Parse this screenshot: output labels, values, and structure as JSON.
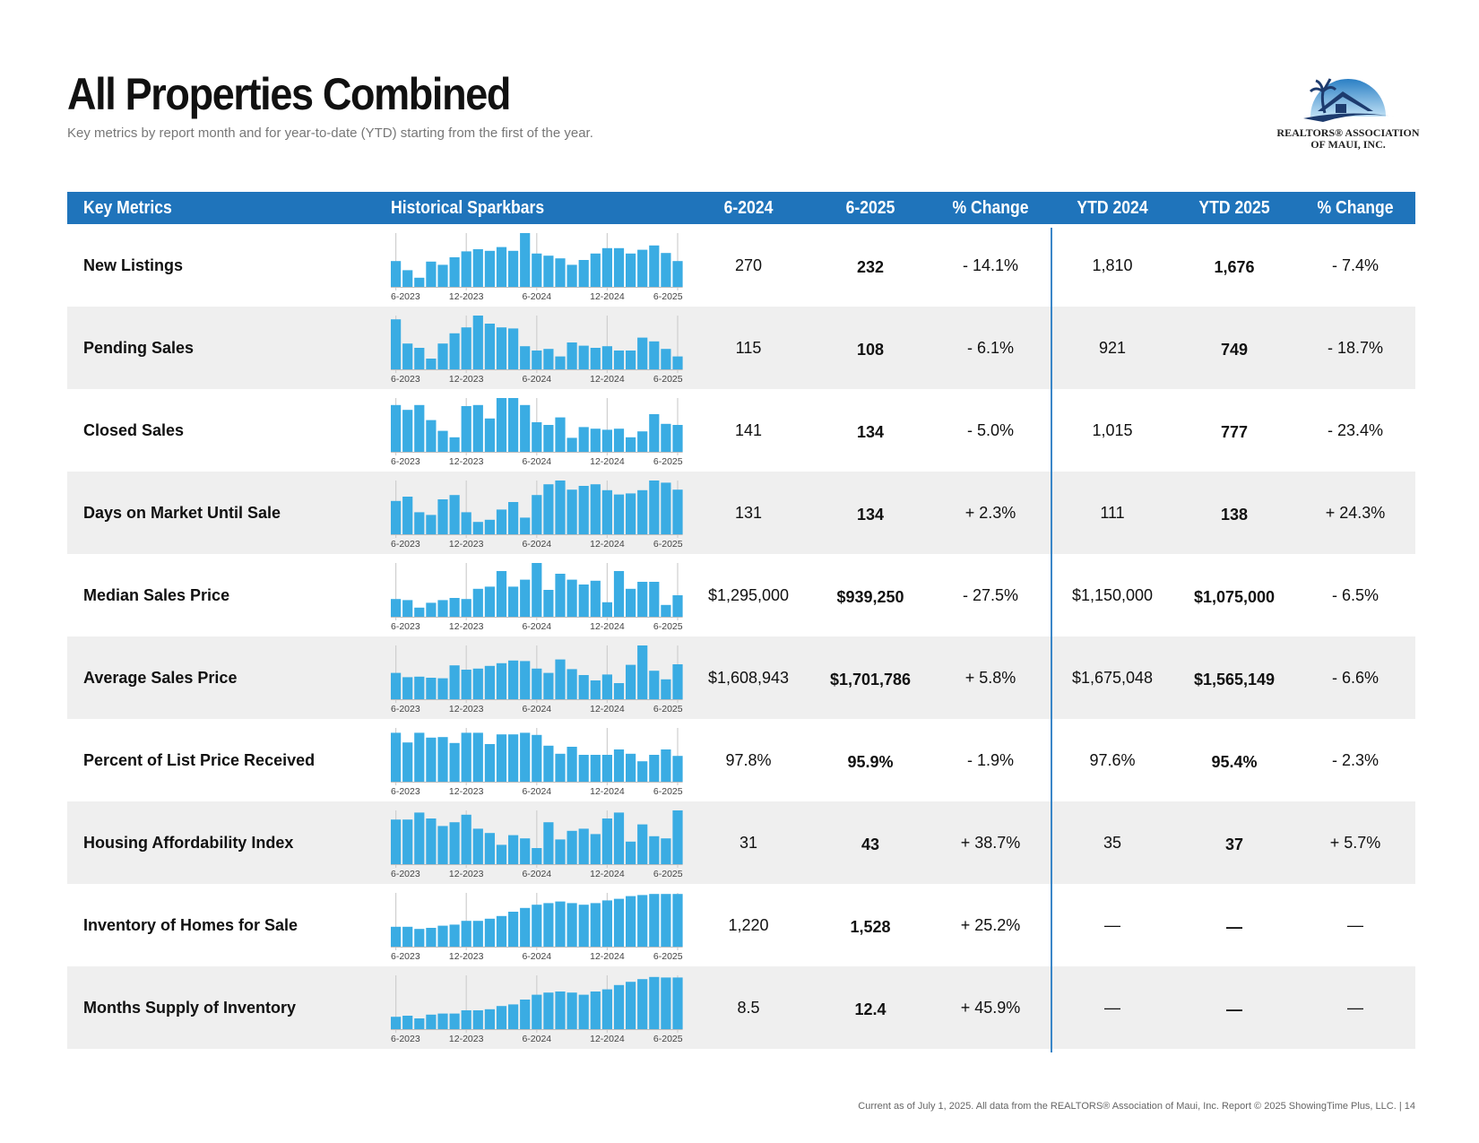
{
  "page": {
    "title": "All Properties Combined",
    "subtitle": "Key metrics by report month and for year-to-date (YTD) starting from the first of the year.",
    "footer": "Current as of July 1, 2025. All data from the REALTORS® Association of Maui, Inc. Report © 2025 ShowingTime Plus, LLC.  |  14"
  },
  "logo": {
    "line1": "REALTORS® ASSOCIATION",
    "line2": "OF MAUI, INC."
  },
  "table": {
    "headers": [
      "Key Metrics",
      "Historical Sparkbars",
      "6-2024",
      "6-2025",
      "% Change",
      "YTD 2024",
      "YTD 2025",
      "% Change"
    ],
    "spark_tick_labels": [
      "6-2023",
      "12-2023",
      "6-2024",
      "12-2024",
      "6-2025"
    ],
    "colors": {
      "header": "#1f74bb",
      "bar": "#3aace3",
      "divider": "#3a86c8",
      "row_alt": "#efefef"
    },
    "rows": [
      {
        "metric": "New Listings",
        "m2024": "270",
        "m2025": "232",
        "chg": "- 14.1%",
        "ytd2024": "1,810",
        "ytd2025": "1,676",
        "ytdchg": "- 7.4%"
      },
      {
        "metric": "Pending Sales",
        "m2024": "115",
        "m2025": "108",
        "chg": "- 6.1%",
        "ytd2024": "921",
        "ytd2025": "749",
        "ytdchg": "- 18.7%"
      },
      {
        "metric": "Closed Sales",
        "m2024": "141",
        "m2025": "134",
        "chg": "- 5.0%",
        "ytd2024": "1,015",
        "ytd2025": "777",
        "ytdchg": "- 23.4%"
      },
      {
        "metric": "Days on Market Until Sale",
        "m2024": "131",
        "m2025": "134",
        "chg": "+ 2.3%",
        "ytd2024": "111",
        "ytd2025": "138",
        "ytdchg": "+ 24.3%"
      },
      {
        "metric": "Median Sales Price",
        "m2024": "$1,295,000",
        "m2025": "$939,250",
        "chg": "- 27.5%",
        "ytd2024": "$1,150,000",
        "ytd2025": "$1,075,000",
        "ytdchg": "- 6.5%"
      },
      {
        "metric": "Average Sales Price",
        "m2024": "$1,608,943",
        "m2025": "$1,701,786",
        "chg": "+ 5.8%",
        "ytd2024": "$1,675,048",
        "ytd2025": "$1,565,149",
        "ytdchg": "- 6.6%"
      },
      {
        "metric": "Percent of List Price Received",
        "m2024": "97.8%",
        "m2025": "95.9%",
        "chg": "- 1.9%",
        "ytd2024": "97.6%",
        "ytd2025": "95.4%",
        "ytdchg": "- 2.3%"
      },
      {
        "metric": "Housing Affordability Index",
        "m2024": "31",
        "m2025": "43",
        "chg": "+ 38.7%",
        "ytd2024": "35",
        "ytd2025": "37",
        "ytdchg": "+ 5.7%"
      },
      {
        "metric": "Inventory of Homes for Sale",
        "m2024": "1,220",
        "m2025": "1,528",
        "chg": "+ 25.2%",
        "ytd2024": "—",
        "ytd2025": "—",
        "ytdchg": "—"
      },
      {
        "metric": "Months Supply of Inventory",
        "m2024": "8.5",
        "m2025": "12.4",
        "chg": "+ 45.9%",
        "ytd2024": "—",
        "ytd2025": "—",
        "ytdchg": "—"
      }
    ]
  },
  "chart_data": [
    {
      "type": "bar",
      "title": "New Listings",
      "categories": [
        "6-2023",
        "7-2023",
        "8-2023",
        "9-2023",
        "10-2023",
        "11-2023",
        "12-2023",
        "1-2024",
        "2-2024",
        "3-2024",
        "4-2024",
        "5-2024",
        "6-2024",
        "7-2024",
        "8-2024",
        "9-2024",
        "10-2024",
        "11-2024",
        "12-2024",
        "1-2025",
        "2-2025",
        "3-2025",
        "4-2025",
        "5-2025",
        "6-2025"
      ],
      "values": [
        0.48,
        0.31,
        0.17,
        0.47,
        0.41,
        0.55,
        0.66,
        0.7,
        0.67,
        0.74,
        0.67,
        1.0,
        0.62,
        0.58,
        0.53,
        0.41,
        0.5,
        0.62,
        0.72,
        0.72,
        0.62,
        0.69,
        0.77,
        0.63,
        0.48
      ]
    },
    {
      "type": "bar",
      "title": "Pending Sales",
      "categories": [
        "6-2023",
        "7-2023",
        "8-2023",
        "9-2023",
        "10-2023",
        "11-2023",
        "12-2023",
        "1-2024",
        "2-2024",
        "3-2024",
        "4-2024",
        "5-2024",
        "6-2024",
        "7-2024",
        "8-2024",
        "9-2024",
        "10-2024",
        "11-2024",
        "12-2024",
        "1-2025",
        "2-2025",
        "3-2025",
        "4-2025",
        "5-2025",
        "6-2025"
      ],
      "values": [
        0.93,
        0.48,
        0.4,
        0.2,
        0.48,
        0.67,
        0.78,
        1.0,
        0.85,
        0.78,
        0.76,
        0.43,
        0.35,
        0.38,
        0.24,
        0.5,
        0.44,
        0.4,
        0.43,
        0.35,
        0.35,
        0.59,
        0.52,
        0.38,
        0.24
      ]
    },
    {
      "type": "bar",
      "title": "Closed Sales",
      "categories": [
        "6-2023",
        "7-2023",
        "8-2023",
        "9-2023",
        "10-2023",
        "11-2023",
        "12-2023",
        "1-2024",
        "2-2024",
        "3-2024",
        "4-2024",
        "5-2024",
        "6-2024",
        "7-2024",
        "8-2024",
        "9-2024",
        "10-2024",
        "11-2024",
        "12-2024",
        "1-2025",
        "2-2025",
        "3-2025",
        "4-2025",
        "5-2025",
        "6-2025"
      ],
      "values": [
        0.87,
        0.78,
        0.87,
        0.59,
        0.39,
        0.27,
        0.85,
        0.87,
        0.62,
        1.0,
        1.0,
        0.87,
        0.55,
        0.5,
        0.64,
        0.26,
        0.46,
        0.43,
        0.41,
        0.43,
        0.27,
        0.38,
        0.7,
        0.52,
        0.5
      ]
    },
    {
      "type": "bar",
      "title": "Days on Market Until Sale",
      "categories": [
        "6-2023",
        "7-2023",
        "8-2023",
        "9-2023",
        "10-2023",
        "11-2023",
        "12-2023",
        "1-2024",
        "2-2024",
        "3-2024",
        "4-2024",
        "5-2024",
        "6-2024",
        "7-2024",
        "8-2024",
        "9-2024",
        "10-2024",
        "11-2024",
        "12-2024",
        "1-2025",
        "2-2025",
        "3-2025",
        "4-2025",
        "5-2025",
        "6-2025"
      ],
      "values": [
        0.62,
        0.7,
        0.41,
        0.36,
        0.65,
        0.73,
        0.41,
        0.23,
        0.27,
        0.46,
        0.6,
        0.31,
        0.73,
        0.93,
        1.0,
        0.83,
        0.9,
        0.93,
        0.82,
        0.74,
        0.76,
        0.82,
        1.0,
        0.96,
        0.83
      ]
    },
    {
      "type": "bar",
      "title": "Median Sales Price",
      "categories": [
        "6-2023",
        "7-2023",
        "8-2023",
        "9-2023",
        "10-2023",
        "11-2023",
        "12-2023",
        "1-2024",
        "2-2024",
        "3-2024",
        "4-2024",
        "5-2024",
        "6-2024",
        "7-2024",
        "8-2024",
        "9-2024",
        "10-2024",
        "11-2024",
        "12-2024",
        "1-2025",
        "2-2025",
        "3-2025",
        "4-2025",
        "5-2025",
        "6-2025"
      ],
      "values": [
        0.33,
        0.31,
        0.17,
        0.26,
        0.31,
        0.35,
        0.33,
        0.52,
        0.56,
        0.85,
        0.56,
        0.69,
        1.0,
        0.5,
        0.8,
        0.69,
        0.6,
        0.67,
        0.27,
        0.85,
        0.52,
        0.65,
        0.65,
        0.22,
        0.4
      ]
    },
    {
      "type": "bar",
      "title": "Average Sales Price",
      "categories": [
        "6-2023",
        "7-2023",
        "8-2023",
        "9-2023",
        "10-2023",
        "11-2023",
        "12-2023",
        "1-2024",
        "2-2024",
        "3-2024",
        "4-2024",
        "5-2024",
        "6-2024",
        "7-2024",
        "8-2024",
        "9-2024",
        "10-2024",
        "11-2024",
        "12-2024",
        "1-2025",
        "2-2025",
        "3-2025",
        "4-2025",
        "5-2025",
        "6-2025"
      ],
      "values": [
        0.49,
        0.41,
        0.42,
        0.4,
        0.39,
        0.63,
        0.55,
        0.57,
        0.62,
        0.67,
        0.72,
        0.71,
        0.57,
        0.49,
        0.74,
        0.56,
        0.45,
        0.35,
        0.46,
        0.3,
        0.64,
        1.0,
        0.53,
        0.37,
        0.65
      ]
    },
    {
      "type": "bar",
      "title": "Percent of List Price Received",
      "categories": [
        "6-2023",
        "7-2023",
        "8-2023",
        "9-2023",
        "10-2023",
        "11-2023",
        "12-2023",
        "1-2024",
        "2-2024",
        "3-2024",
        "4-2024",
        "5-2024",
        "6-2024",
        "7-2024",
        "8-2024",
        "9-2024",
        "10-2024",
        "11-2024",
        "12-2024",
        "1-2025",
        "2-2025",
        "3-2025",
        "4-2025",
        "5-2025",
        "6-2025"
      ],
      "values": [
        0.91,
        0.73,
        0.91,
        0.82,
        0.83,
        0.72,
        0.91,
        0.91,
        0.7,
        0.88,
        0.88,
        0.91,
        0.87,
        0.67,
        0.52,
        0.65,
        0.5,
        0.5,
        0.5,
        0.6,
        0.52,
        0.38,
        0.5,
        0.6,
        0.48
      ]
    },
    {
      "type": "bar",
      "title": "Housing Affordability Index",
      "categories": [
        "6-2023",
        "7-2023",
        "8-2023",
        "9-2023",
        "10-2023",
        "11-2023",
        "12-2023",
        "1-2024",
        "2-2024",
        "3-2024",
        "4-2024",
        "5-2024",
        "6-2024",
        "7-2024",
        "8-2024",
        "9-2024",
        "10-2024",
        "11-2024",
        "12-2024",
        "1-2025",
        "2-2025",
        "3-2025",
        "4-2025",
        "5-2025",
        "6-2025"
      ],
      "values": [
        0.83,
        0.83,
        0.96,
        0.85,
        0.71,
        0.78,
        0.92,
        0.66,
        0.58,
        0.36,
        0.54,
        0.48,
        0.3,
        0.78,
        0.46,
        0.62,
        0.66,
        0.56,
        0.85,
        0.96,
        0.42,
        0.74,
        0.52,
        0.48,
        1.0
      ]
    },
    {
      "type": "bar",
      "title": "Inventory of Homes for Sale",
      "categories": [
        "6-2023",
        "7-2023",
        "8-2023",
        "9-2023",
        "10-2023",
        "11-2023",
        "12-2023",
        "1-2024",
        "2-2024",
        "3-2024",
        "4-2024",
        "5-2024",
        "6-2024",
        "7-2024",
        "8-2024",
        "9-2024",
        "10-2024",
        "11-2024",
        "12-2024",
        "1-2025",
        "2-2025",
        "3-2025",
        "4-2025",
        "5-2025",
        "6-2025"
      ],
      "values": [
        0.37,
        0.37,
        0.33,
        0.35,
        0.39,
        0.41,
        0.48,
        0.48,
        0.52,
        0.57,
        0.65,
        0.72,
        0.78,
        0.81,
        0.84,
        0.81,
        0.78,
        0.81,
        0.86,
        0.89,
        0.94,
        0.96,
        0.98,
        0.98,
        0.98
      ]
    },
    {
      "type": "bar",
      "title": "Months Supply of Inventory",
      "categories": [
        "6-2023",
        "7-2023",
        "8-2023",
        "9-2023",
        "10-2023",
        "11-2023",
        "12-2023",
        "1-2024",
        "2-2024",
        "3-2024",
        "4-2024",
        "5-2024",
        "6-2024",
        "7-2024",
        "8-2024",
        "9-2024",
        "10-2024",
        "11-2024",
        "12-2024",
        "1-2025",
        "2-2025",
        "3-2025",
        "4-2025",
        "5-2025",
        "6-2025"
      ],
      "values": [
        0.23,
        0.25,
        0.2,
        0.27,
        0.29,
        0.29,
        0.35,
        0.35,
        0.37,
        0.43,
        0.46,
        0.55,
        0.64,
        0.68,
        0.7,
        0.68,
        0.64,
        0.7,
        0.74,
        0.82,
        0.88,
        0.93,
        0.97,
        0.96,
        0.96
      ]
    }
  ]
}
